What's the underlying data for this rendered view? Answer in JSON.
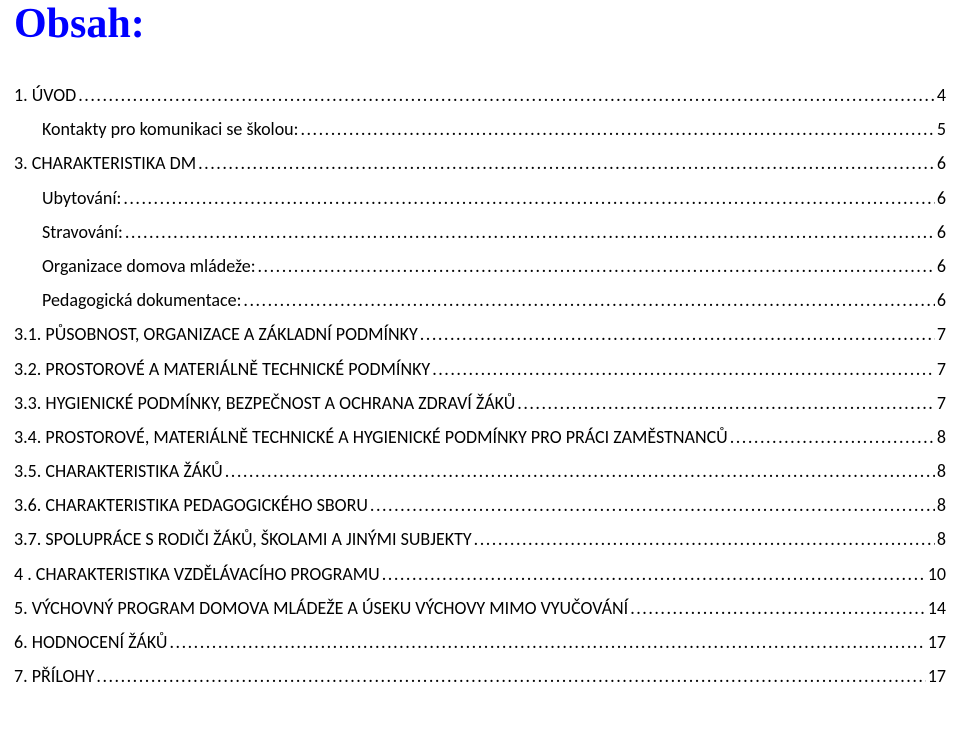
{
  "title": "Obsah:",
  "colors": {
    "title_color": "#0000ff",
    "text_color": "#000000",
    "background": "#ffffff"
  },
  "typography": {
    "title_font": "Times New Roman",
    "title_size_pt": 28,
    "title_weight": "bold",
    "body_font": "Calibri",
    "body_size_pt": 12
  },
  "toc": [
    {
      "label": "1. ÚVOD",
      "page": "4",
      "indent": 0
    },
    {
      "label": "Kontakty pro komunikaci se školou:",
      "page": "5",
      "indent": 1
    },
    {
      "label": "3. CHARAKTERISTIKA DM",
      "page": "6",
      "indent": 0
    },
    {
      "label": "Ubytování:",
      "page": "6",
      "indent": 1
    },
    {
      "label": "Stravování:",
      "page": "6",
      "indent": 1
    },
    {
      "label": "Organizace domova mládeže:",
      "page": "6",
      "indent": 1
    },
    {
      "label": "Pedagogická dokumentace:",
      "page": "6",
      "indent": 1
    },
    {
      "label": "3.1. PŮSOBNOST, ORGANIZACE  A  ZÁKLADNÍ  PODMÍNKY",
      "page": "7",
      "indent": 0
    },
    {
      "label": "3.2. PROSTOROVÉ  A  MATERIÁLNĚ  TECHNICKÉ  PODMÍNKY",
      "page": "7",
      "indent": 0
    },
    {
      "label": "3.3. HYGIENICKÉ  PODMÍNKY,  BEZPEČNOST  A  OCHRANA  ZDRAVÍ  ŽÁKŮ",
      "page": "7",
      "indent": 0
    },
    {
      "label": "3.4. PROSTOROVÉ, MATERIÁLNĚ  TECHNICKÉ  A  HYGIENICKÉ  PODMÍNKY  PRO  PRÁCI  ZAMĚSTNANCŮ",
      "page": "8",
      "indent": 0
    },
    {
      "label": "3.5. CHARAKTERISTIKA ŽÁKŮ",
      "page": "8",
      "indent": 0
    },
    {
      "label": "3.6. CHARAKTERISTIKA PEDAGOGICKÉHO SBORU",
      "page": "8",
      "indent": 0
    },
    {
      "label": "3.7. SPOLUPRÁCE S RODIČI ŽÁKŮ, ŠKOLAMI A JINÝMI SUBJEKTY",
      "page": "8",
      "indent": 0
    },
    {
      "label": "4 . CHARAKTERISTIKA VZDĚLÁVACÍHO PROGRAMU",
      "page": "10",
      "indent": 0
    },
    {
      "label": "5. VÝCHOVNÝ  PROGRAM  DOMOVA  MLÁDEŽE  A   ÚSEKU  VÝCHOVY  MIMO  VYUČOVÁNÍ",
      "page": "14",
      "indent": 0
    },
    {
      "label": "6. HODNOCENÍ ŽÁKŮ",
      "page": "17",
      "indent": 0
    },
    {
      "label": "7. PŘÍLOHY",
      "page": "17",
      "indent": 0
    }
  ]
}
